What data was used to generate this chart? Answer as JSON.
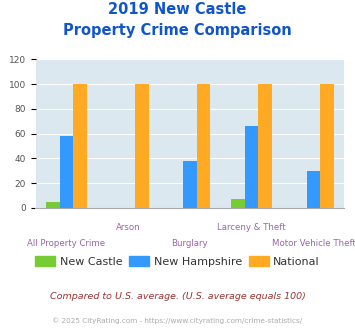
{
  "title_line1": "2019 New Castle",
  "title_line2": "Property Crime Comparison",
  "categories": [
    "All Property Crime",
    "Arson",
    "Burglary",
    "Larceny & Theft",
    "Motor Vehicle Theft"
  ],
  "series": {
    "New Castle": [
      5,
      0,
      0,
      7,
      0
    ],
    "New Hampshire": [
      58,
      0,
      38,
      66,
      30
    ],
    "National": [
      100,
      100,
      100,
      100,
      100
    ]
  },
  "colors": {
    "New Castle": "#77cc33",
    "New Hampshire": "#3399ff",
    "National": "#ffaa22"
  },
  "ylim": [
    0,
    120
  ],
  "yticks": [
    0,
    20,
    40,
    60,
    80,
    100,
    120
  ],
  "bar_width": 0.22,
  "title_color": "#1155cc",
  "axis_bg_color": "#dce8f0",
  "fig_bg_color": "#ffffff",
  "grid_color": "#ffffff",
  "xlabel_color": "#9966aa",
  "ylabel_color": "#555555",
  "legend_fontsize": 8.0,
  "title_fontsize": 10.5,
  "footnote1": "Compared to U.S. average. (U.S. average equals 100)",
  "footnote2": "© 2025 CityRating.com - https://www.cityrating.com/crime-statistics/",
  "footnote1_color": "#993333",
  "footnote2_color": "#aaaaaa",
  "label_row1": [
    "",
    "Arson",
    "",
    "Larceny & Theft",
    ""
  ],
  "label_row2": [
    "All Property Crime",
    "",
    "Burglary",
    "",
    "Motor Vehicle Theft"
  ]
}
